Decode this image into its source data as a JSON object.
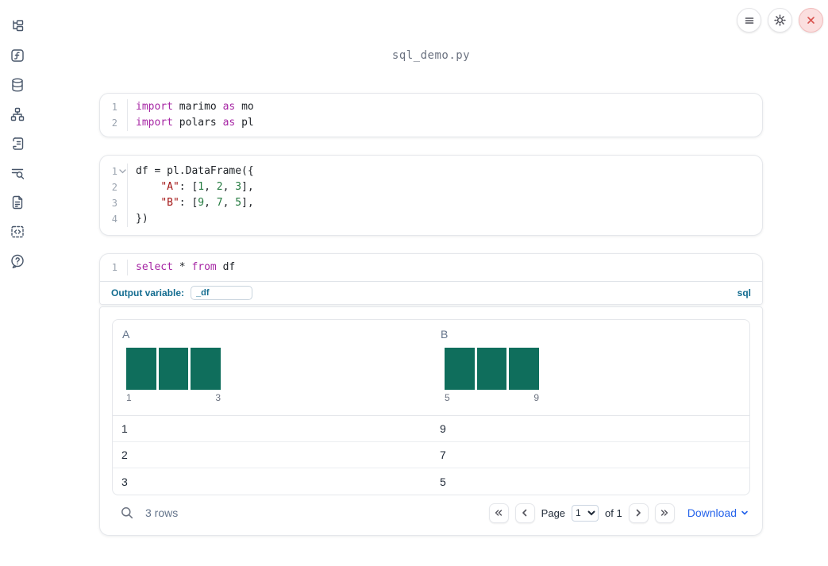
{
  "title": "sql_demo.py",
  "colors": {
    "accent": "#136c90",
    "link": "#2563eb",
    "bar": "#0f6e5c",
    "keyword": "#a626a4",
    "string": "#a31515",
    "number": "#237a3f",
    "icon": "#475569",
    "danger": "#d9534f"
  },
  "topbar": {
    "buttons": [
      "menu",
      "settings",
      "shutdown"
    ]
  },
  "sidebar": {
    "items": [
      "file-tree",
      "functions",
      "datasources",
      "dependency-graph",
      "logs",
      "table-of-contents-search",
      "documentation",
      "code-snippets",
      "help"
    ]
  },
  "cells": [
    {
      "name": "imports-cell",
      "lines": [
        {
          "n": "1",
          "tokens": [
            [
              "kw",
              "import"
            ],
            [
              "pl",
              " marimo "
            ],
            [
              "kw",
              "as"
            ],
            [
              "pl",
              " mo"
            ]
          ]
        },
        {
          "n": "2",
          "tokens": [
            [
              "kw",
              "import"
            ],
            [
              "pl",
              " polars "
            ],
            [
              "kw",
              "as"
            ],
            [
              "pl",
              " pl"
            ]
          ]
        }
      ]
    },
    {
      "name": "dataframe-cell",
      "lines": [
        {
          "n": "1",
          "fold": true,
          "tokens": [
            [
              "pl",
              "df = pl.DataFrame({"
            ]
          ]
        },
        {
          "n": "2",
          "tokens": [
            [
              "pl",
              "    "
            ],
            [
              "str",
              "\"A\""
            ],
            [
              "pl",
              ": ["
            ],
            [
              "num",
              "1"
            ],
            [
              "pl",
              ", "
            ],
            [
              "num",
              "2"
            ],
            [
              "pl",
              ", "
            ],
            [
              "num",
              "3"
            ],
            [
              "pl",
              "],"
            ]
          ]
        },
        {
          "n": "3",
          "tokens": [
            [
              "pl",
              "    "
            ],
            [
              "str",
              "\"B\""
            ],
            [
              "pl",
              ": ["
            ],
            [
              "num",
              "9"
            ],
            [
              "pl",
              ", "
            ],
            [
              "num",
              "7"
            ],
            [
              "pl",
              ", "
            ],
            [
              "num",
              "5"
            ],
            [
              "pl",
              "],"
            ]
          ]
        },
        {
          "n": "4",
          "tokens": [
            [
              "pl",
              "})"
            ]
          ]
        }
      ]
    },
    {
      "name": "sql-cell",
      "lines": [
        {
          "n": "1",
          "tokens": [
            [
              "kw",
              "select"
            ],
            [
              "pl",
              " * "
            ],
            [
              "kw",
              "from"
            ],
            [
              "pl",
              " df"
            ]
          ]
        }
      ],
      "output_variable_label": "Output variable:",
      "output_variable_value": "_df",
      "language_badge": "sql"
    }
  ],
  "output_table": {
    "columns": [
      {
        "name": "A",
        "ticks": {
          "min": "1",
          "max": "3"
        },
        "bars": [
          1,
          1,
          1
        ]
      },
      {
        "name": "B",
        "ticks": {
          "min": "5",
          "max": "9"
        },
        "bars": [
          1,
          1,
          1
        ]
      }
    ],
    "rows": [
      [
        "1",
        "9"
      ],
      [
        "2",
        "7"
      ],
      [
        "3",
        "5"
      ]
    ],
    "footer": {
      "row_count": "3 rows",
      "page_label": "Page",
      "page_value": "1",
      "of_label": "of 1",
      "download_label": "Download"
    }
  },
  "chart_data": {
    "type": "bar",
    "charts": [
      {
        "title": "A",
        "bins": [
          "1",
          "2",
          "3"
        ],
        "counts": [
          1,
          1,
          1
        ],
        "x_min_label": "1",
        "x_max_label": "3"
      },
      {
        "title": "B",
        "bins": [
          "5",
          "7",
          "9"
        ],
        "counts": [
          1,
          1,
          1
        ],
        "x_min_label": "5",
        "x_max_label": "9"
      }
    ]
  }
}
